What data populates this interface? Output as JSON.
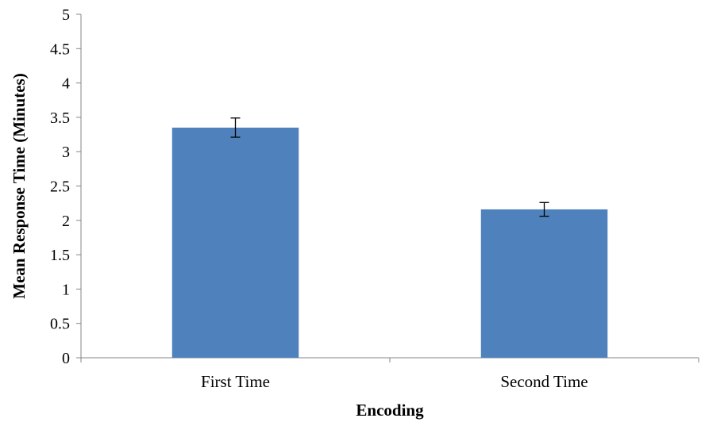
{
  "chart_data": {
    "type": "bar",
    "title": "",
    "xlabel": "Encoding",
    "ylabel": "Mean Response Time (Minutes)",
    "categories": [
      "First Time",
      "Second Time"
    ],
    "values": [
      3.35,
      2.16
    ],
    "error": [
      0.14,
      0.1
    ],
    "ylim": [
      0,
      5
    ],
    "yticks": [
      "0",
      "0.5",
      "1",
      "1.5",
      "2",
      "2.5",
      "3",
      "3.5",
      "4",
      "4.5",
      "5"
    ],
    "grid": false,
    "legend": "none",
    "bar_color": "#4f81bd"
  }
}
